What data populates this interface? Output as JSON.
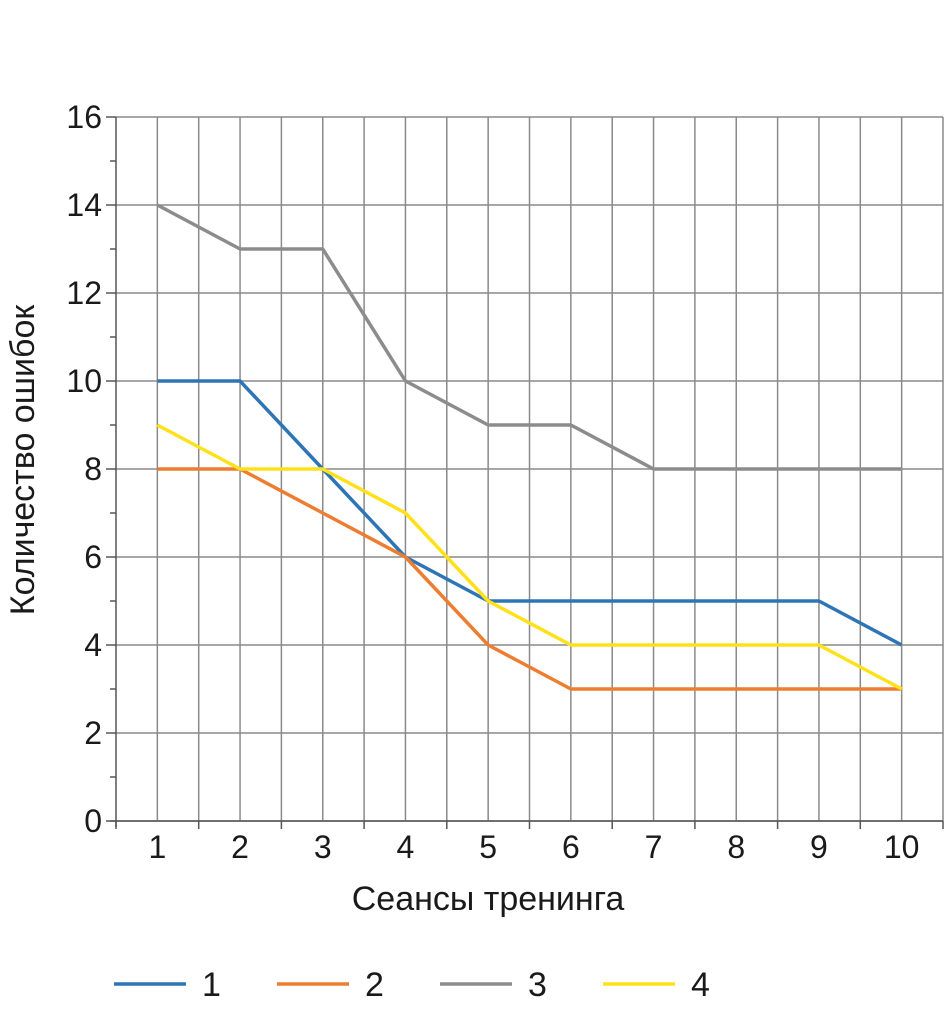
{
  "chart_data": {
    "type": "line",
    "x": [
      1,
      2,
      3,
      4,
      5,
      6,
      7,
      8,
      9,
      10
    ],
    "series": [
      {
        "name": "1",
        "color": "#2e75b6",
        "values": [
          10,
          10,
          8,
          6,
          5,
          5,
          5,
          5,
          5,
          4
        ]
      },
      {
        "name": "2",
        "color": "#ed7d31",
        "values": [
          8,
          8,
          7,
          6,
          4,
          3,
          3,
          3,
          3,
          3
        ]
      },
      {
        "name": "3",
        "color": "#8c8c8c",
        "values": [
          14,
          13,
          13,
          10,
          9,
          9,
          8,
          8,
          8,
          8
        ]
      },
      {
        "name": "4",
        "color": "#ffe11a",
        "values": [
          9,
          8,
          8,
          7,
          5,
          4,
          4,
          4,
          4,
          3
        ]
      }
    ],
    "xlabel": "Сеансы тренинга",
    "ylabel": "Количество ошибок",
    "ylim": [
      0,
      16
    ],
    "yticks": [
      0,
      2,
      4,
      6,
      8,
      10,
      12,
      14,
      16
    ],
    "xticks": [
      1,
      2,
      3,
      4,
      5,
      6,
      7,
      8,
      9,
      10
    ],
    "grid": true,
    "legend": "bottom"
  }
}
